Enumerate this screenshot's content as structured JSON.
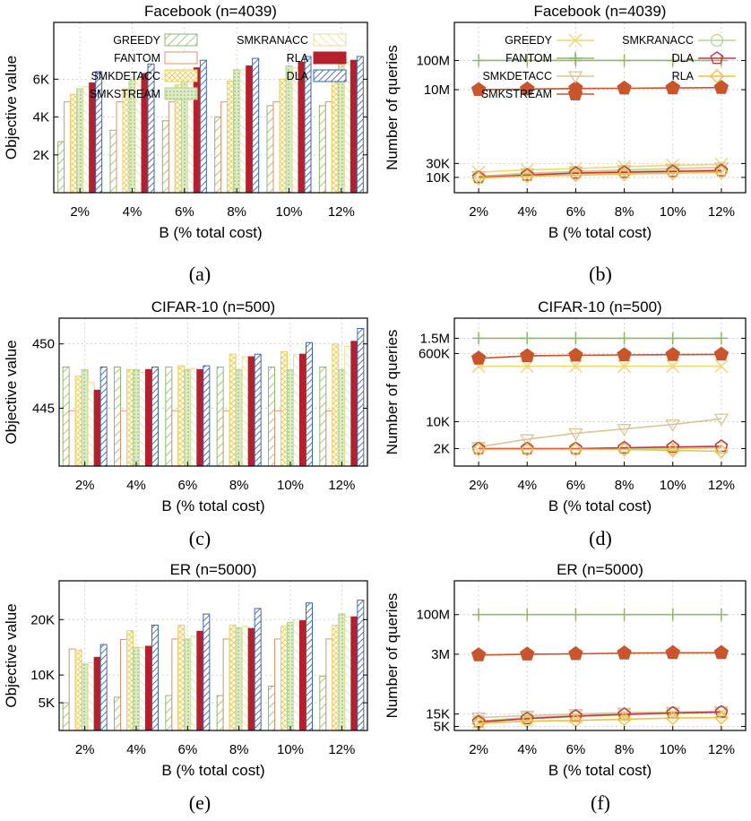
{
  "colors": {
    "GREEDY": "#8fb86a",
    "FANTOM": "#e0906a",
    "SMKDETACC": "#f0cf5a",
    "SMKSTREAM": "#b6d48e",
    "SMKRANACC": "#e4df96",
    "RLA": "#b5202e",
    "DLA": "#3d66b0",
    "SMKSTREAM_line": "#c8552b",
    "DLA_line": "#c2354a",
    "RLA_line": "#f0c040"
  },
  "chart_data": [
    {
      "panel": "a",
      "caption": "(a)",
      "type": "bar",
      "title": "Facebook (n=4039)",
      "xlabel": "B (% total cost)",
      "ylabel": "Objective value",
      "categories": [
        "2%",
        "4%",
        "6%",
        "8%",
        "10%",
        "12%"
      ],
      "ylim": [
        0,
        9000
      ],
      "yticks": [
        {
          "v": 2000,
          "label": "2K"
        },
        {
          "v": 4000,
          "label": "4K"
        },
        {
          "v": 6000,
          "label": "6K"
        }
      ],
      "legend": [
        "GREEDY",
        "FANTOM",
        "SMKDETACC",
        "SMKSTREAM",
        "SMKRANACC",
        "RLA",
        "DLA"
      ],
      "series": [
        {
          "name": "GREEDY",
          "values": [
            2700,
            3300,
            3800,
            4000,
            4600,
            4600
          ]
        },
        {
          "name": "FANTOM",
          "values": [
            4800,
            4800,
            4800,
            4800,
            4800,
            4800
          ]
        },
        {
          "name": "SMKDETACC",
          "values": [
            5200,
            5500,
            5700,
            5900,
            6000,
            6000
          ]
        },
        {
          "name": "SMKSTREAM",
          "values": [
            5500,
            6000,
            6400,
            6500,
            6700,
            6800
          ]
        },
        {
          "name": "SMKRANACC",
          "values": [
            5600,
            6000,
            6200,
            6500,
            6600,
            6900
          ]
        },
        {
          "name": "RLA",
          "values": [
            5800,
            6300,
            6600,
            6700,
            6900,
            7000
          ]
        },
        {
          "name": "DLA",
          "values": [
            6400,
            6800,
            7000,
            7100,
            7200,
            7200
          ]
        }
      ]
    },
    {
      "panel": "b",
      "caption": "(b)",
      "type": "line",
      "yscale": "log",
      "title": "Facebook (n=4039)",
      "xlabel": "B (% total cost)",
      "ylabel": "Number of queries",
      "categories": [
        "2%",
        "4%",
        "6%",
        "8%",
        "10%",
        "12%"
      ],
      "ylim": [
        3000,
        2000000000
      ],
      "yticks": [
        {
          "v": 10000,
          "label": "10K"
        },
        {
          "v": 30000,
          "label": "30K"
        },
        {
          "v": 10000000,
          "label": "10M"
        },
        {
          "v": 100000000,
          "label": "100M"
        }
      ],
      "legend": [
        "GREEDY",
        "FANTOM",
        "SMKDETACC",
        "SMKSTREAM",
        "SMKRANACC",
        "DLA",
        "RLA"
      ],
      "series": [
        {
          "name": "GREEDY",
          "values": [
            15000,
            18000,
            20000,
            23000,
            26000,
            28000
          ]
        },
        {
          "name": "FANTOM",
          "values": [
            100000000,
            100000000,
            100000000,
            100000000,
            100000000,
            100000000
          ]
        },
        {
          "name": "SMKDETACC",
          "values": [
            11000,
            14000,
            16000,
            18000,
            20000,
            22000
          ]
        },
        {
          "name": "SMKSTREAM",
          "values": [
            10000000,
            10500000,
            11000000,
            11200000,
            11500000,
            11800000
          ]
        },
        {
          "name": "SMKRANACC",
          "values": [
            10000,
            13000,
            15000,
            16000,
            17000,
            18000
          ]
        },
        {
          "name": "DLA",
          "values": [
            10000,
            12000,
            14000,
            15000,
            16000,
            17000
          ]
        },
        {
          "name": "RLA",
          "values": [
            9500,
            11000,
            12000,
            13000,
            14000,
            15000
          ]
        }
      ]
    },
    {
      "panel": "c",
      "caption": "(c)",
      "type": "bar",
      "title": "CIFAR-10 (n=500)",
      "xlabel": "B (% total cost)",
      "ylabel": "Objective value",
      "categories": [
        "2%",
        "4%",
        "6%",
        "8%",
        "10%",
        "12%"
      ],
      "ylim": [
        440.5,
        452
      ],
      "yticks": [
        {
          "v": 445,
          "label": "445"
        },
        {
          "v": 450,
          "label": "450"
        }
      ],
      "series": [
        {
          "name": "GREEDY",
          "values": [
            448.2,
            448.2,
            448.2,
            448.2,
            448.2,
            448.2
          ]
        },
        {
          "name": "FANTOM",
          "values": [
            444.8,
            444.8,
            444.8,
            444.8,
            444.8,
            444.8
          ]
        },
        {
          "name": "SMKDETACC",
          "values": [
            447.5,
            448.0,
            448.3,
            449.2,
            449.4,
            450.0
          ]
        },
        {
          "name": "SMKSTREAM",
          "values": [
            448.0,
            448.0,
            448.0,
            448.0,
            448.0,
            448.0
          ]
        },
        {
          "name": "SMKRANACC",
          "values": [
            447.0,
            447.8,
            448.1,
            449.0,
            449.2,
            449.8
          ]
        },
        {
          "name": "RLA",
          "values": [
            446.4,
            448.0,
            448.0,
            449.0,
            449.2,
            450.2
          ]
        },
        {
          "name": "DLA",
          "values": [
            448.2,
            448.2,
            448.3,
            449.2,
            450.1,
            451.2
          ]
        }
      ]
    },
    {
      "panel": "d",
      "caption": "(d)",
      "type": "line",
      "yscale": "log",
      "title": "CIFAR-10 (n=500)",
      "xlabel": "B (% total cost)",
      "ylabel": "Number of queries",
      "categories": [
        "2%",
        "4%",
        "6%",
        "8%",
        "10%",
        "12%"
      ],
      "ylim": [
        700,
        5000000
      ],
      "yticks": [
        {
          "v": 2000,
          "label": "2K"
        },
        {
          "v": 10000,
          "label": "10K"
        },
        {
          "v": 600000,
          "label": "600K"
        },
        {
          "v": 1500000,
          "label": "1.5M"
        }
      ],
      "series": [
        {
          "name": "GREEDY",
          "values": [
            280000,
            280000,
            280000,
            280000,
            280000,
            280000
          ]
        },
        {
          "name": "FANTOM",
          "values": [
            1500000,
            1500000,
            1500000,
            1500000,
            1500000,
            1500000
          ]
        },
        {
          "name": "SMKDETACC",
          "values": [
            2200,
            3500,
            5000,
            6500,
            8500,
            12000
          ]
        },
        {
          "name": "SMKSTREAM",
          "values": [
            450000,
            520000,
            540000,
            550000,
            560000,
            570000
          ]
        },
        {
          "name": "SMKRANACC",
          "values": [
            2000,
            2000,
            2000,
            2000,
            2000,
            2100
          ]
        },
        {
          "name": "DLA",
          "values": [
            2000,
            2000,
            2000,
            2100,
            2200,
            2300
          ]
        },
        {
          "name": "RLA",
          "values": [
            1900,
            1900,
            1900,
            1900,
            1800,
            1700
          ]
        }
      ]
    },
    {
      "panel": "e",
      "caption": "(e)",
      "type": "bar",
      "title": "ER (n=5000)",
      "xlabel": "B (% total cost)",
      "ylabel": "Objective value",
      "categories": [
        "2%",
        "4%",
        "6%",
        "8%",
        "10%",
        "12%"
      ],
      "ylim": [
        0,
        27000
      ],
      "yticks": [
        {
          "v": 5000,
          "label": "5K"
        },
        {
          "v": 10000,
          "label": "10K"
        },
        {
          "v": 20000,
          "label": "20K"
        }
      ],
      "series": [
        {
          "name": "GREEDY",
          "values": [
            5000,
            6000,
            6300,
            6300,
            8000,
            9800
          ]
        },
        {
          "name": "FANTOM",
          "values": [
            14700,
            16400,
            16500,
            16500,
            16500,
            16500
          ]
        },
        {
          "name": "SMKDETACC",
          "values": [
            14500,
            18000,
            19000,
            19000,
            18800,
            19000
          ]
        },
        {
          "name": "SMKSTREAM",
          "values": [
            12000,
            15000,
            16500,
            18500,
            19500,
            21000
          ]
        },
        {
          "name": "SMKRANACC",
          "values": [
            12200,
            15000,
            17000,
            18800,
            20000,
            20500
          ]
        },
        {
          "name": "RLA",
          "values": [
            13200,
            15200,
            17900,
            18400,
            19800,
            20500
          ]
        },
        {
          "name": "DLA",
          "values": [
            15500,
            19000,
            21000,
            22000,
            23000,
            23500
          ]
        }
      ]
    },
    {
      "panel": "f",
      "caption": "(f)",
      "type": "line",
      "yscale": "log",
      "title": "ER (n=5000)",
      "xlabel": "B (% total cost)",
      "ylabel": "Number of queries",
      "categories": [
        "2%",
        "4%",
        "6%",
        "8%",
        "10%",
        "12%"
      ],
      "ylim": [
        3500,
        2000000000
      ],
      "yticks": [
        {
          "v": 5000,
          "label": "5K"
        },
        {
          "v": 15000,
          "label": "15K"
        },
        {
          "v": 3000000,
          "label": "3M"
        },
        {
          "v": 100000000,
          "label": "100M"
        }
      ],
      "series": [
        {
          "name": "GREEDY",
          "values": [
            7000,
            10000,
            12000,
            14000,
            16000,
            17000
          ]
        },
        {
          "name": "FANTOM",
          "values": [
            100000000,
            100000000,
            100000000,
            100000000,
            100000000,
            100000000
          ]
        },
        {
          "name": "SMKDETACC",
          "values": [
            11000,
            13000,
            15000,
            17000,
            18000,
            19000
          ]
        },
        {
          "name": "SMKSTREAM",
          "values": [
            2800000,
            3000000,
            3100000,
            3300000,
            3400000,
            3400000
          ]
        },
        {
          "name": "SMKRANACC",
          "values": [
            8000,
            11000,
            13000,
            15000,
            17000,
            18000
          ]
        },
        {
          "name": "DLA",
          "values": [
            7500,
            10000,
            12500,
            14500,
            16500,
            18000
          ]
        },
        {
          "name": "RLA",
          "values": [
            6500,
            8000,
            8500,
            9500,
            10500,
            11000
          ]
        }
      ]
    }
  ]
}
